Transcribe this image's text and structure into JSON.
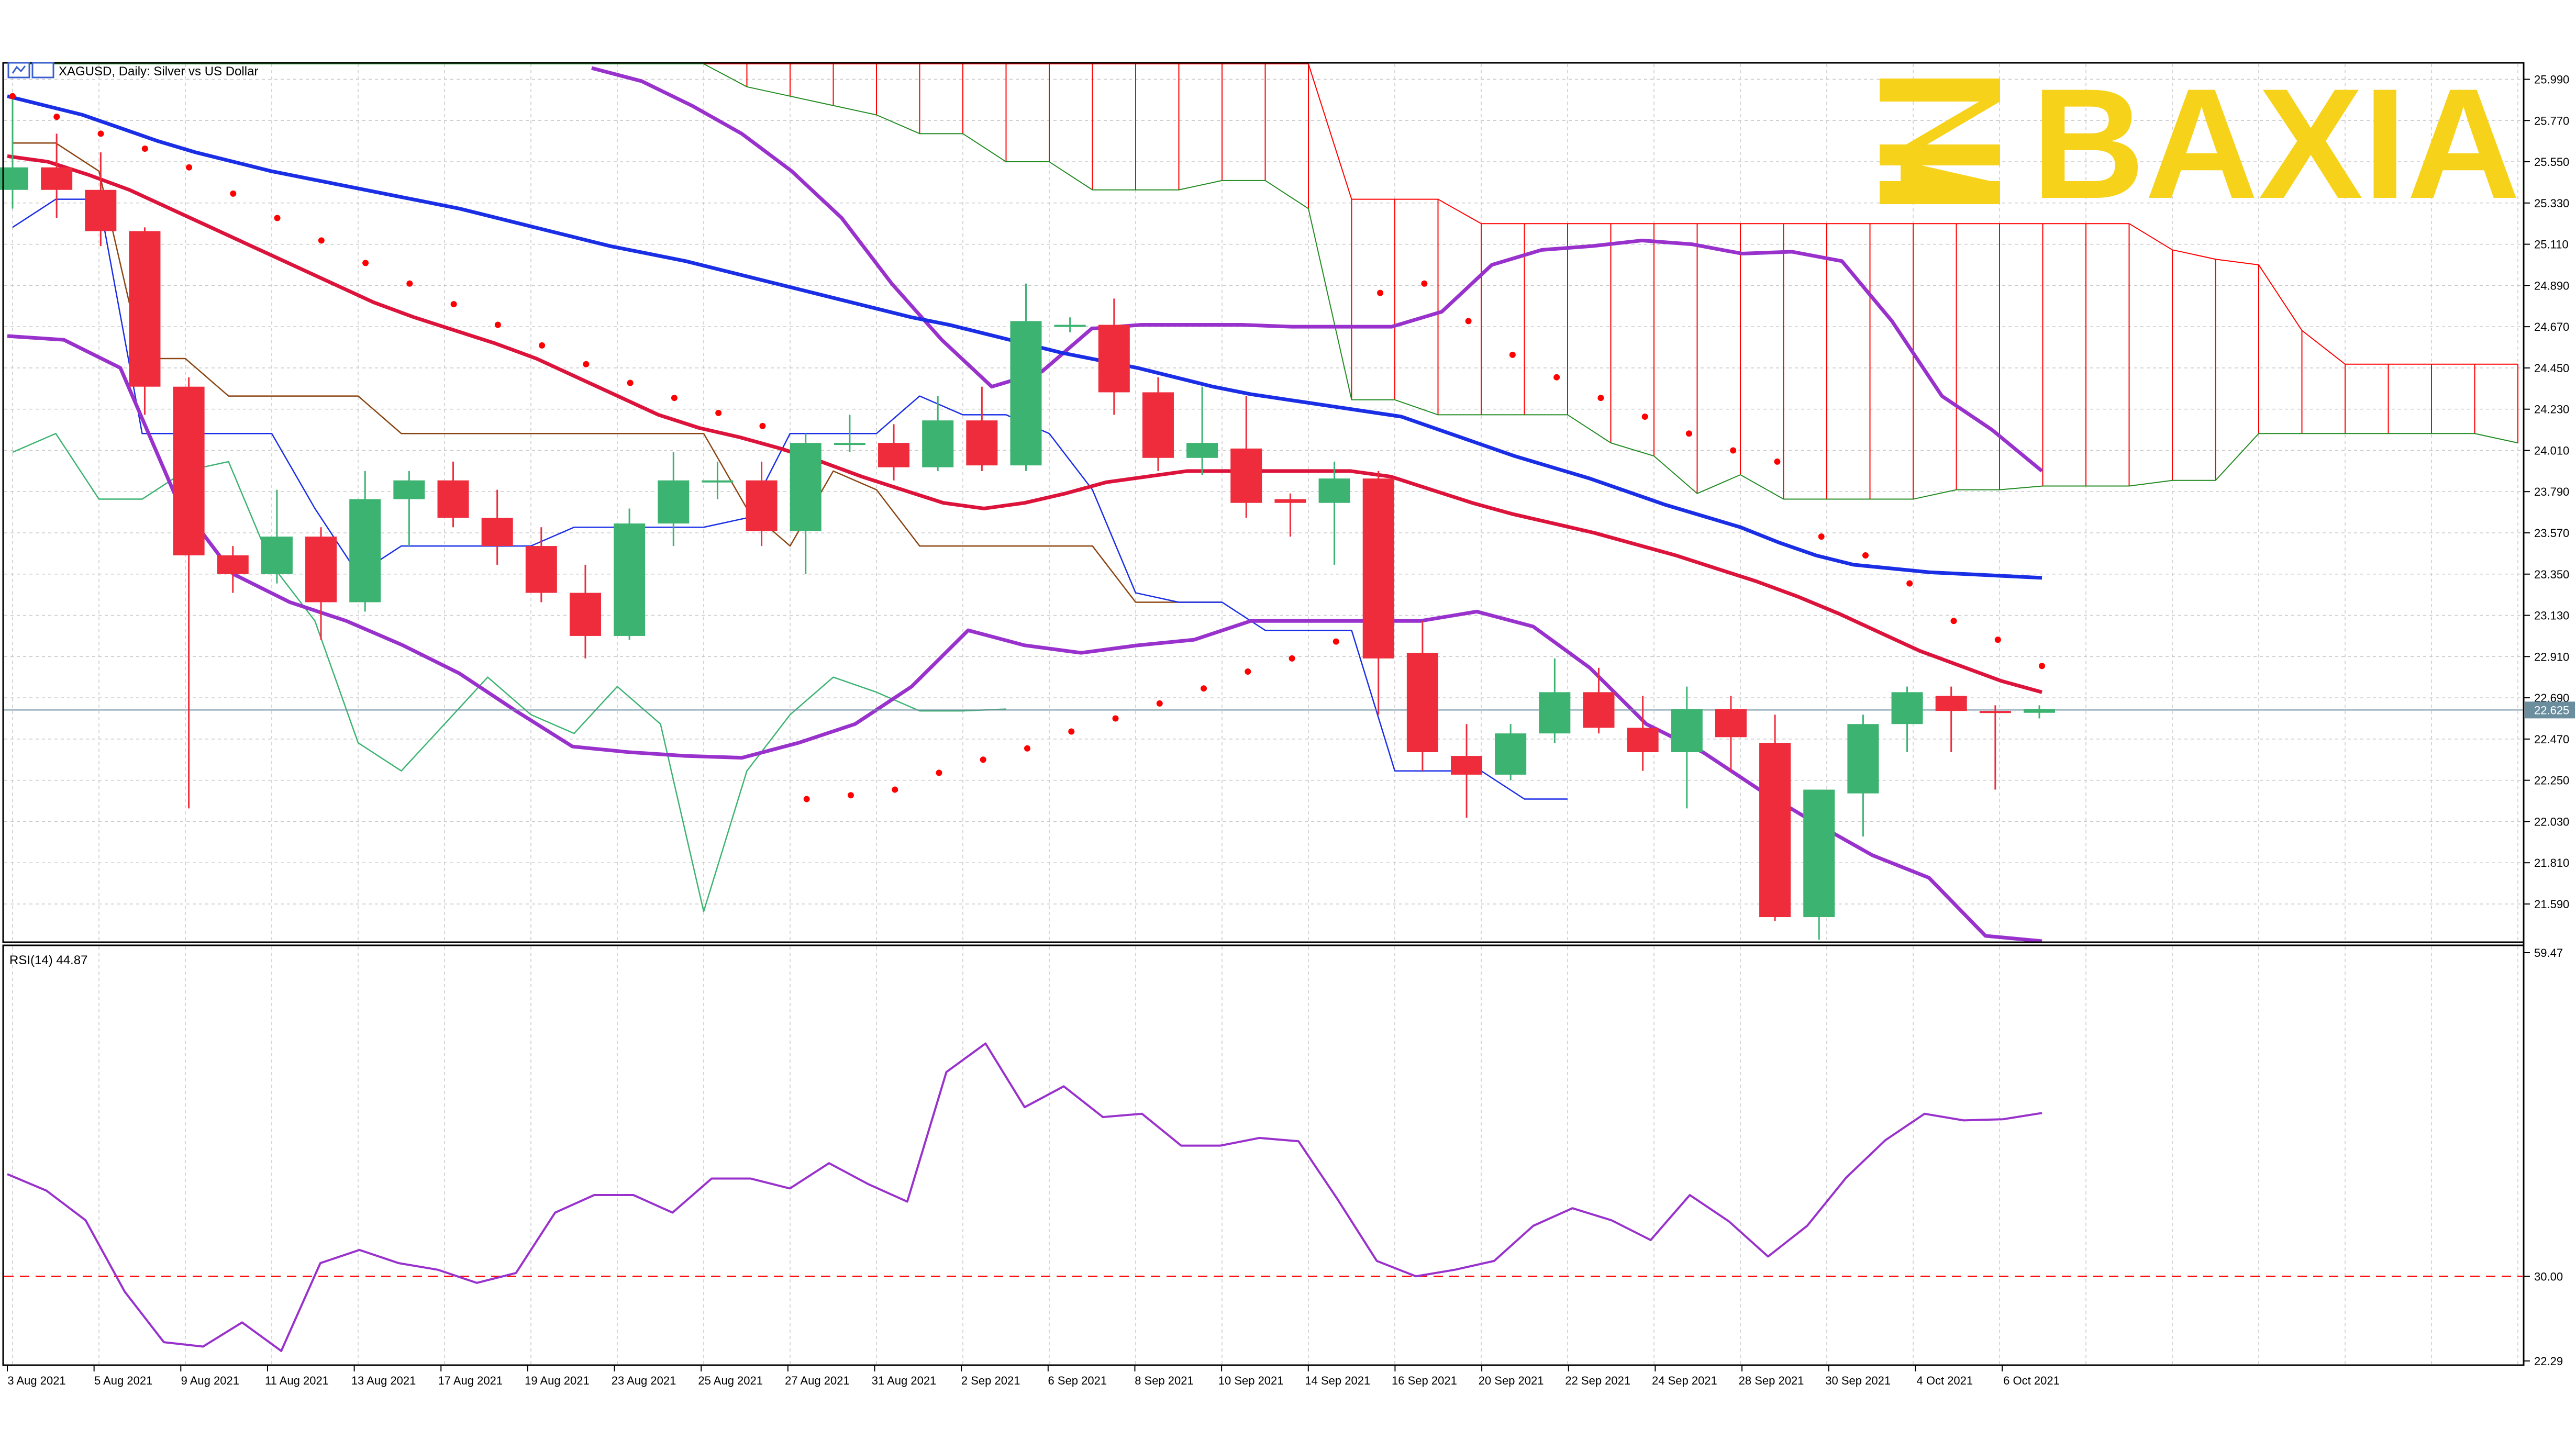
{
  "window": {
    "title": "XAGUSD, Daily:  Silver vs US Dollar"
  },
  "logo": {
    "text": "BAXIA",
    "color": "#f7d21b"
  },
  "colors": {
    "bull": "#3cb371",
    "bear": "#ee2c3c",
    "ma_blue": "#1a2ee6",
    "ma_red": "#dc143c",
    "bollinger": "#9932cc",
    "sar": "#ff0000",
    "kumo_fill": "#ff0000",
    "tenkan": "#1a2ee6",
    "kijun": "#8b4513",
    "chikou": "#3cb371",
    "senkou_a": "#ff0000",
    "senkou_b": "#228b22",
    "rsi": "#9932cc",
    "rsi_level": "#ff0000",
    "current_price_line": "#6b8e9f"
  },
  "chart_data": [
    {
      "type": "candlestick",
      "title": "XAGUSD, Daily:  Silver vs US Dollar",
      "x_labels": [
        "3 Aug 2021",
        "5 Aug 2021",
        "9 Aug 2021",
        "11 Aug 2021",
        "13 Aug 2021",
        "17 Aug 2021",
        "19 Aug 2021",
        "23 Aug 2021",
        "25 Aug 2021",
        "27 Aug 2021",
        "31 Aug 2021",
        "2 Sep 2021",
        "6 Sep 2021",
        "8 Sep 2021",
        "10 Sep 2021",
        "14 Sep 2021",
        "16 Sep 2021",
        "20 Sep 2021",
        "22 Sep 2021",
        "24 Sep 2021",
        "28 Sep 2021",
        "30 Sep 2021",
        "4 Oct 2021",
        "6 Oct 2021"
      ],
      "y_ticks": [
        "25.990",
        "25.770",
        "25.550",
        "25.330",
        "25.110",
        "24.890",
        "24.670",
        "24.450",
        "24.230",
        "24.010",
        "23.790",
        "23.570",
        "23.350",
        "23.130",
        "22.910",
        "22.690",
        "22.470",
        "22.250",
        "22.030",
        "21.810",
        "21.590"
      ],
      "current_price_label": "22.625",
      "current_price": 22.625,
      "ylim": [
        21.4,
        26.05
      ],
      "candles": [
        {
          "o": 25.4,
          "h": 25.9,
          "l": 25.3,
          "c": 25.52
        },
        {
          "o": 25.52,
          "h": 25.7,
          "l": 25.25,
          "c": 25.4
        },
        {
          "o": 25.4,
          "h": 25.6,
          "l": 25.1,
          "c": 25.18
        },
        {
          "o": 25.18,
          "h": 25.2,
          "l": 24.2,
          "c": 24.35
        },
        {
          "o": 24.35,
          "h": 24.4,
          "l": 22.1,
          "c": 23.45
        },
        {
          "o": 23.45,
          "h": 23.5,
          "l": 23.25,
          "c": 23.35
        },
        {
          "o": 23.35,
          "h": 23.8,
          "l": 23.3,
          "c": 23.55
        },
        {
          "o": 23.55,
          "h": 23.6,
          "l": 23.0,
          "c": 23.2
        },
        {
          "o": 23.2,
          "h": 23.9,
          "l": 23.15,
          "c": 23.75
        },
        {
          "o": 23.75,
          "h": 23.9,
          "l": 23.5,
          "c": 23.85
        },
        {
          "o": 23.85,
          "h": 23.95,
          "l": 23.6,
          "c": 23.65
        },
        {
          "o": 23.65,
          "h": 23.8,
          "l": 23.4,
          "c": 23.5
        },
        {
          "o": 23.5,
          "h": 23.6,
          "l": 23.2,
          "c": 23.25
        },
        {
          "o": 23.25,
          "h": 23.4,
          "l": 22.9,
          "c": 23.02
        },
        {
          "o": 23.02,
          "h": 23.7,
          "l": 23.0,
          "c": 23.62
        },
        {
          "o": 23.62,
          "h": 24.0,
          "l": 23.5,
          "c": 23.85
        },
        {
          "o": 23.85,
          "h": 23.95,
          "l": 23.75,
          "c": 23.85
        },
        {
          "o": 23.85,
          "h": 23.95,
          "l": 23.5,
          "c": 23.58
        },
        {
          "o": 23.58,
          "h": 24.1,
          "l": 23.35,
          "c": 24.05
        },
        {
          "o": 24.05,
          "h": 24.2,
          "l": 24.0,
          "c": 24.05
        },
        {
          "o": 24.05,
          "h": 24.15,
          "l": 23.85,
          "c": 23.92
        },
        {
          "o": 23.92,
          "h": 24.3,
          "l": 23.9,
          "c": 24.17
        },
        {
          "o": 24.17,
          "h": 24.35,
          "l": 23.9,
          "c": 23.93
        },
        {
          "o": 23.93,
          "h": 24.9,
          "l": 23.9,
          "c": 24.7
        },
        {
          "o": 24.68,
          "h": 24.72,
          "l": 24.64,
          "c": 24.68
        },
        {
          "o": 24.68,
          "h": 24.82,
          "l": 24.2,
          "c": 24.32
        },
        {
          "o": 24.32,
          "h": 24.4,
          "l": 23.9,
          "c": 23.97
        },
        {
          "o": 23.97,
          "h": 24.35,
          "l": 23.88,
          "c": 24.05
        },
        {
          "o": 24.02,
          "h": 24.3,
          "l": 23.65,
          "c": 23.73
        },
        {
          "o": 23.75,
          "h": 23.78,
          "l": 23.55,
          "c": 23.73
        },
        {
          "o": 23.73,
          "h": 23.95,
          "l": 23.4,
          "c": 23.86
        },
        {
          "o": 23.86,
          "h": 23.9,
          "l": 22.6,
          "c": 22.9
        },
        {
          "o": 22.93,
          "h": 23.1,
          "l": 22.3,
          "c": 22.4
        },
        {
          "o": 22.38,
          "h": 22.55,
          "l": 22.05,
          "c": 22.28
        },
        {
          "o": 22.28,
          "h": 22.55,
          "l": 22.25,
          "c": 22.5
        },
        {
          "o": 22.5,
          "h": 22.9,
          "l": 22.45,
          "c": 22.72
        },
        {
          "o": 22.72,
          "h": 22.85,
          "l": 22.5,
          "c": 22.53
        },
        {
          "o": 22.53,
          "h": 22.7,
          "l": 22.3,
          "c": 22.4
        },
        {
          "o": 22.4,
          "h": 22.75,
          "l": 22.1,
          "c": 22.63
        },
        {
          "o": 22.63,
          "h": 22.7,
          "l": 22.3,
          "c": 22.48
        },
        {
          "o": 22.45,
          "h": 22.6,
          "l": 21.5,
          "c": 21.52
        },
        {
          "o": 21.52,
          "h": 22.2,
          "l": 21.4,
          "c": 22.2
        },
        {
          "o": 22.18,
          "h": 22.6,
          "l": 21.95,
          "c": 22.55
        },
        {
          "o": 22.55,
          "h": 22.75,
          "l": 22.4,
          "c": 22.72
        },
        {
          "o": 22.7,
          "h": 22.75,
          "l": 22.4,
          "c": 22.62
        },
        {
          "o": 22.62,
          "h": 22.65,
          "l": 22.2,
          "c": 22.61
        },
        {
          "o": 22.61,
          "h": 22.65,
          "l": 22.58,
          "c": 22.63
        }
      ],
      "ma_blue": [
        25.9,
        25.85,
        25.8,
        25.73,
        25.66,
        25.6,
        25.55,
        25.5,
        25.46,
        25.42,
        25.38,
        25.34,
        25.3,
        25.25,
        25.2,
        25.15,
        25.1,
        25.06,
        25.02,
        24.97,
        24.92,
        24.87,
        24.82,
        24.77,
        24.72,
        24.68,
        24.63,
        24.58,
        24.53,
        24.49,
        24.45,
        24.4,
        24.35,
        24.31,
        24.28,
        24.25,
        24.22,
        24.19,
        24.12,
        24.05,
        23.98,
        23.92,
        23.86,
        23.79,
        23.72,
        23.66,
        23.6,
        23.52,
        23.45,
        23.4,
        23.38,
        23.36,
        23.35,
        23.34,
        23.33
      ],
      "ma_red": [
        25.58,
        25.55,
        25.48,
        25.4,
        25.3,
        25.2,
        25.1,
        25.0,
        24.9,
        24.8,
        24.72,
        24.65,
        24.58,
        24.5,
        24.4,
        24.3,
        24.2,
        24.13,
        24.08,
        24.02,
        23.95,
        23.87,
        23.8,
        23.73,
        23.7,
        23.73,
        23.78,
        23.84,
        23.87,
        23.9,
        23.9,
        23.9,
        23.9,
        23.9,
        23.87,
        23.8,
        23.73,
        23.67,
        23.62,
        23.57,
        23.51,
        23.45,
        23.38,
        23.31,
        23.23,
        23.14,
        23.04,
        22.94,
        22.86,
        22.78,
        22.72
      ],
      "bb_upper": [
        26.05,
        25.98,
        25.85,
        25.7,
        25.5,
        25.25,
        24.9,
        24.6,
        24.35,
        24.43,
        24.66,
        24.68,
        24.68,
        24.68,
        24.67,
        24.67,
        24.67,
        24.75,
        25.0,
        25.08,
        25.1,
        25.13,
        25.11,
        25.06,
        25.07,
        25.02,
        24.7,
        24.3,
        24.12,
        23.9
      ],
      "bb_mid": [
        24.62,
        24.6,
        24.45,
        23.75,
        23.35,
        23.2,
        23.1,
        22.97,
        22.82,
        22.62,
        22.43,
        22.4,
        22.38,
        22.37,
        22.45,
        22.55,
        22.75,
        23.05,
        22.97,
        22.93,
        22.97,
        23.0,
        23.1,
        23.1,
        23.1,
        23.1,
        23.15,
        23.07,
        22.85,
        22.55,
        22.4,
        22.2,
        22.02,
        21.85,
        21.73,
        21.42,
        21.33
      ],
      "sar": [
        25.9,
        25.79,
        25.7,
        25.62,
        25.52,
        25.38,
        25.25,
        25.13,
        25.01,
        24.9,
        24.79,
        24.68,
        24.57,
        24.47,
        24.37,
        24.29,
        24.21,
        24.14,
        22.15,
        22.17,
        22.2,
        22.29,
        22.36,
        22.42,
        22.51,
        22.58,
        22.66,
        22.74,
        22.83,
        22.9,
        22.99,
        24.85,
        24.9,
        24.7,
        24.52,
        24.4,
        24.29,
        24.19,
        24.1,
        24.01,
        23.95,
        23.55,
        23.45,
        23.3,
        23.1,
        23.0,
        22.86
      ],
      "tenkan": [
        25.2,
        25.35,
        25.35,
        24.1,
        24.1,
        24.1,
        24.1,
        23.7,
        23.35,
        23.5,
        23.5,
        23.5,
        23.5,
        23.6,
        23.6,
        23.6,
        23.6,
        23.65,
        24.1,
        24.1,
        24.1,
        24.3,
        24.2,
        24.2,
        24.1,
        23.8,
        23.25,
        23.2,
        23.2,
        23.05,
        23.05,
        23.05,
        22.3,
        22.3,
        22.3,
        22.15,
        22.15
      ],
      "kijun": [
        25.65,
        25.65,
        25.5,
        24.5,
        24.5,
        24.3,
        24.3,
        24.3,
        24.3,
        24.1,
        24.1,
        24.1,
        24.1,
        24.1,
        24.1,
        24.1,
        24.1,
        23.7,
        23.5,
        23.9,
        23.8,
        23.5,
        23.5,
        23.5,
        23.5,
        23.5,
        23.2,
        23.2,
        23.2
      ]
    },
    {
      "type": "line",
      "title": "RSI(14) 44.87",
      "y_ticks": [
        "59.47",
        "30.00",
        "22.29"
      ],
      "ylim": [
        22.29,
        59.47
      ],
      "level": 30.0,
      "values": [
        39.3,
        37.8,
        35.1,
        28.6,
        24.0,
        23.6,
        25.8,
        23.2,
        31.2,
        32.4,
        31.2,
        30.6,
        29.4,
        30.3,
        35.8,
        37.4,
        37.4,
        35.8,
        38.9,
        38.9,
        38.0,
        40.3,
        38.4,
        36.8,
        48.6,
        51.2,
        45.4,
        47.3,
        44.5,
        44.8,
        41.9,
        41.9,
        42.6,
        42.3,
        37.0,
        31.4,
        30.0,
        30.6,
        31.4,
        34.6,
        36.2,
        35.1,
        33.3,
        37.4,
        35.0,
        31.8,
        34.6,
        39.0,
        42.4,
        44.8,
        44.2,
        44.3,
        44.87
      ],
      "x_labels": [
        "3 Aug 2021",
        "5 Aug 2021",
        "9 Aug 2021",
        "11 Aug 2021",
        "13 Aug 2021",
        "17 Aug 2021",
        "19 Aug 2021",
        "23 Aug 2021",
        "25 Aug 2021",
        "27 Aug 2021",
        "31 Aug 2021",
        "2 Sep 2021",
        "6 Sep 2021",
        "8 Sep 2021",
        "10 Sep 2021",
        "14 Sep 2021",
        "16 Sep 2021",
        "20 Sep 2021",
        "22 Sep 2021",
        "24 Sep 2021",
        "28 Sep 2021",
        "30 Sep 2021",
        "4 Oct 2021",
        "6 Oct 2021"
      ]
    }
  ]
}
